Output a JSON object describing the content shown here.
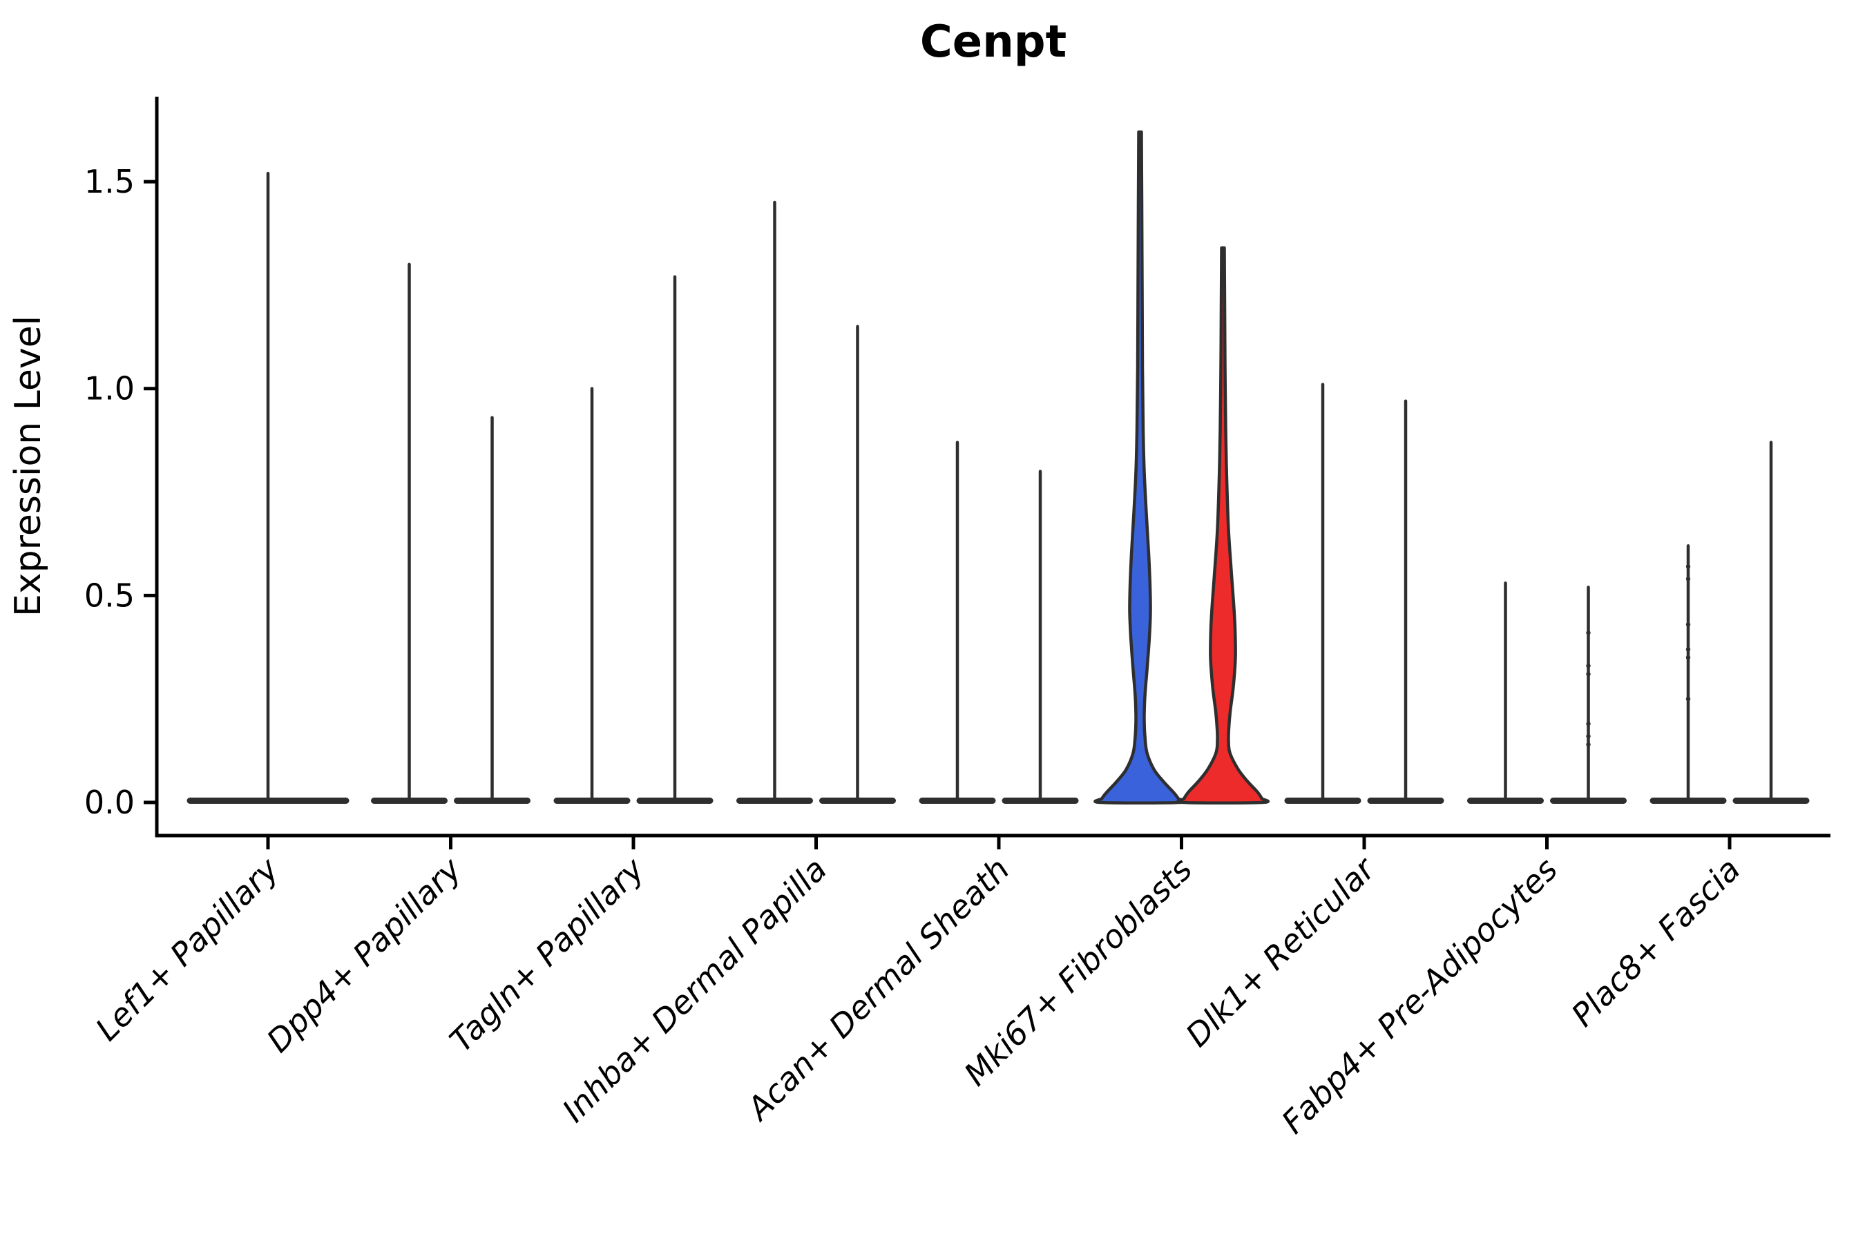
{
  "title": "Cenpt",
  "chart_data": {
    "type": "violin",
    "title": "Cenpt",
    "ylabel": "Expression Level",
    "xlabel": "",
    "yticks": [
      0.0,
      0.5,
      1.0,
      1.5
    ],
    "ylim": [
      -0.07,
      1.7
    ],
    "grid": false,
    "legend": "none",
    "background": "#ffffff",
    "outline_color": "#2e2e2e",
    "axis_color": "#000000",
    "split_colors": {
      "left_group": "#3a63db",
      "right_group": "#ee2b2b"
    },
    "categories": [
      "Lef1+ Papillary",
      "Dpp4+ Papillary",
      "Tagln+ Papillary",
      "Inhba+ Dermal Papilla",
      "Acan+ Dermal Sheath",
      "Mki67+ Fibroblasts",
      "Dlk1+ Reticular",
      "Fabp4+ Pre-Adipocytes",
      "Plac8+ Fascia"
    ],
    "violins": [
      {
        "category": "Lef1+ Papillary",
        "position": "center",
        "max": 1.52,
        "filled": false
      },
      {
        "category": "Dpp4+ Papillary",
        "position": "left",
        "max": 1.3,
        "filled": false
      },
      {
        "category": "Dpp4+ Papillary",
        "position": "right",
        "max": 0.93,
        "filled": false
      },
      {
        "category": "Tagln+ Papillary",
        "position": "left",
        "max": 1.0,
        "filled": false
      },
      {
        "category": "Tagln+ Papillary",
        "position": "right",
        "max": 1.27,
        "filled": false
      },
      {
        "category": "Inhba+ Dermal Papilla",
        "position": "left",
        "max": 1.45,
        "filled": false
      },
      {
        "category": "Inhba+ Dermal Papilla",
        "position": "right",
        "max": 1.15,
        "filled": false
      },
      {
        "category": "Acan+ Dermal Sheath",
        "position": "left",
        "max": 0.87,
        "filled": false
      },
      {
        "category": "Acan+ Dermal Sheath",
        "position": "right",
        "max": 0.8,
        "filled": false
      },
      {
        "category": "Mki67+ Fibroblasts",
        "position": "left",
        "max": 1.62,
        "filled": true,
        "fill": "#3a63db",
        "profile": [
          [
            1.62,
            2
          ],
          [
            1.45,
            2.5
          ],
          [
            1.25,
            3
          ],
          [
            1.05,
            3.5
          ],
          [
            0.9,
            4.5
          ],
          [
            0.8,
            6
          ],
          [
            0.7,
            9
          ],
          [
            0.6,
            12.5
          ],
          [
            0.52,
            14.5
          ],
          [
            0.46,
            15
          ],
          [
            0.4,
            13.5
          ],
          [
            0.33,
            10.5
          ],
          [
            0.28,
            8
          ],
          [
            0.24,
            6.5
          ],
          [
            0.2,
            6
          ],
          [
            0.16,
            7
          ],
          [
            0.12,
            10
          ],
          [
            0.08,
            20
          ],
          [
            0.05,
            34
          ],
          [
            0.025,
            48
          ],
          [
            0.01,
            55
          ],
          [
            0.0,
            57
          ]
        ]
      },
      {
        "category": "Mki67+ Fibroblasts",
        "position": "right",
        "max": 1.34,
        "filled": true,
        "fill": "#ee2b2b",
        "profile": [
          [
            1.34,
            2
          ],
          [
            1.2,
            2.5
          ],
          [
            1.05,
            3
          ],
          [
            0.9,
            4
          ],
          [
            0.78,
            5.5
          ],
          [
            0.66,
            8
          ],
          [
            0.56,
            12
          ],
          [
            0.48,
            15.5
          ],
          [
            0.42,
            17.5
          ],
          [
            0.35,
            18
          ],
          [
            0.28,
            15
          ],
          [
            0.22,
            10.5
          ],
          [
            0.18,
            8.5
          ],
          [
            0.15,
            8
          ],
          [
            0.12,
            10
          ],
          [
            0.08,
            22
          ],
          [
            0.05,
            36
          ],
          [
            0.025,
            50
          ],
          [
            0.01,
            56
          ],
          [
            0.0,
            57
          ]
        ]
      },
      {
        "category": "Dlk1+ Reticular",
        "position": "left",
        "max": 1.01,
        "filled": false
      },
      {
        "category": "Dlk1+ Reticular",
        "position": "right",
        "max": 0.97,
        "filled": false
      },
      {
        "category": "Fabp4+ Pre-Adipocytes",
        "position": "left",
        "max": 0.53,
        "filled": false
      },
      {
        "category": "Fabp4+ Pre-Adipocytes",
        "position": "right",
        "max": 0.52,
        "filled": false,
        "dots": [
          0.41,
          0.33,
          0.31,
          0.19,
          0.16,
          0.14
        ]
      },
      {
        "category": "Plac8+ Fascia",
        "position": "left",
        "max": 0.62,
        "filled": false,
        "dots": [
          0.57,
          0.54,
          0.43,
          0.37,
          0.35,
          0.25
        ]
      },
      {
        "category": "Plac8+ Fascia",
        "position": "right",
        "max": 0.87,
        "filled": false
      }
    ]
  }
}
